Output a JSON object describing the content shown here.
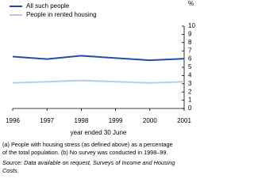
{
  "chart_data": {
    "type": "line",
    "x": [
      1996,
      1997,
      1998,
      2000,
      2001
    ],
    "series": [
      {
        "name": "All such people",
        "color": "#1f4fa8",
        "values": [
          6.3,
          6.0,
          6.4,
          5.85,
          6.05
        ]
      },
      {
        "name": "People in rented housing",
        "color": "#b8cce8",
        "values": [
          3.1,
          3.25,
          3.4,
          3.1,
          3.25
        ]
      }
    ],
    "xlim": [
      1996,
      2001
    ],
    "xticks": [
      1996,
      1997,
      1998,
      1999,
      2000,
      2001
    ],
    "ylim": [
      0,
      10
    ],
    "yticks": [
      0,
      1,
      2,
      3,
      4,
      5,
      6,
      7,
      8,
      9,
      10
    ],
    "ylabel": "%",
    "xlabel": "year ended 30 June",
    "legend": "top-left",
    "notes": [
      "(a) People with housing stress (as defined above) as a percentage",
      "of the total population. (b) No survey was conducted in 1998–99.",
      "Source: Data available on request, Surveys of Income and Housing",
      "Costs."
    ]
  }
}
